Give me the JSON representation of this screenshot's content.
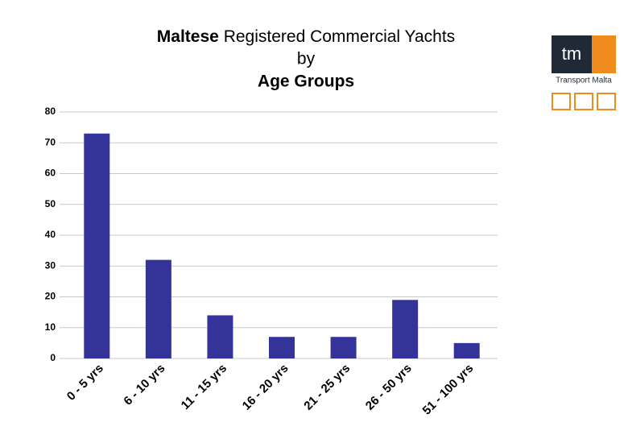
{
  "chart_data": {
    "type": "bar",
    "title": [
      "Maltese",
      "Registered Commercial Yachts",
      "by",
      "Age Groups"
    ],
    "categories": [
      "0 - 5 yrs",
      "6 - 10 yrs",
      "11 - 15 yrs",
      "16 - 20 yrs",
      "21 - 25 yrs",
      "26 - 50 yrs",
      "51 - 100 yrs"
    ],
    "values": [
      73,
      32,
      14,
      7,
      7,
      19,
      5
    ],
    "color": "#333399",
    "ylim": [
      0,
      80
    ],
    "yticks": [
      0,
      10,
      20,
      30,
      40,
      50,
      60,
      70,
      80
    ],
    "grid": true
  },
  "logo": {
    "mark": "tm",
    "caption": "Transport Malta"
  }
}
